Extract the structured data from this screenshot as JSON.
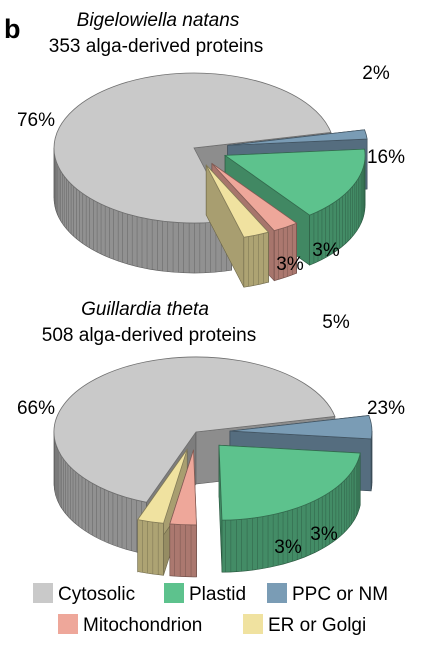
{
  "panel_label": "b",
  "colors": {
    "Cytosolic": "#c9c9c9",
    "Plastid": "#5dc28d",
    "PPC or NM": "#7a9cb5",
    "Mitochondrion": "#eea79a",
    "ER or Golgi": "#f0e2a0"
  },
  "legend": [
    {
      "label": "Cytosolic",
      "icon": "legend-swatch"
    },
    {
      "label": "Plastid",
      "icon": "legend-swatch"
    },
    {
      "label": "PPC or NM",
      "icon": "legend-swatch"
    },
    {
      "label": "Mitochondrion",
      "icon": "legend-swatch"
    },
    {
      "label": "ER or Golgi",
      "icon": "legend-swatch"
    }
  ],
  "chart_data": [
    {
      "type": "pie",
      "title": "Bigelowiella natans",
      "subtitle": "353 alga-derived proteins",
      "style": "3d exploded pie",
      "slices": [
        {
          "category": "Cytosolic",
          "value": 76,
          "label": "76%"
        },
        {
          "category": "PPC or NM",
          "value": 2,
          "label": "2%"
        },
        {
          "category": "Plastid",
          "value": 16,
          "label": "16%"
        },
        {
          "category": "Mitochondrion",
          "value": 3,
          "label": "3%"
        },
        {
          "category": "ER or Golgi",
          "value": 3,
          "label": "3%"
        }
      ]
    },
    {
      "type": "pie",
      "title": "Guillardia theta",
      "subtitle": "508 alga-derived proteins",
      "style": "3d exploded pie",
      "slices": [
        {
          "category": "Cytosolic",
          "value": 66,
          "label": "66%"
        },
        {
          "category": "PPC or NM",
          "value": 5,
          "label": "5%"
        },
        {
          "category": "Plastid",
          "value": 23,
          "label": "23%"
        },
        {
          "category": "Mitochondrion",
          "value": 3,
          "label": "3%"
        },
        {
          "category": "ER or Golgi",
          "value": 3,
          "label": "3%"
        }
      ]
    }
  ]
}
